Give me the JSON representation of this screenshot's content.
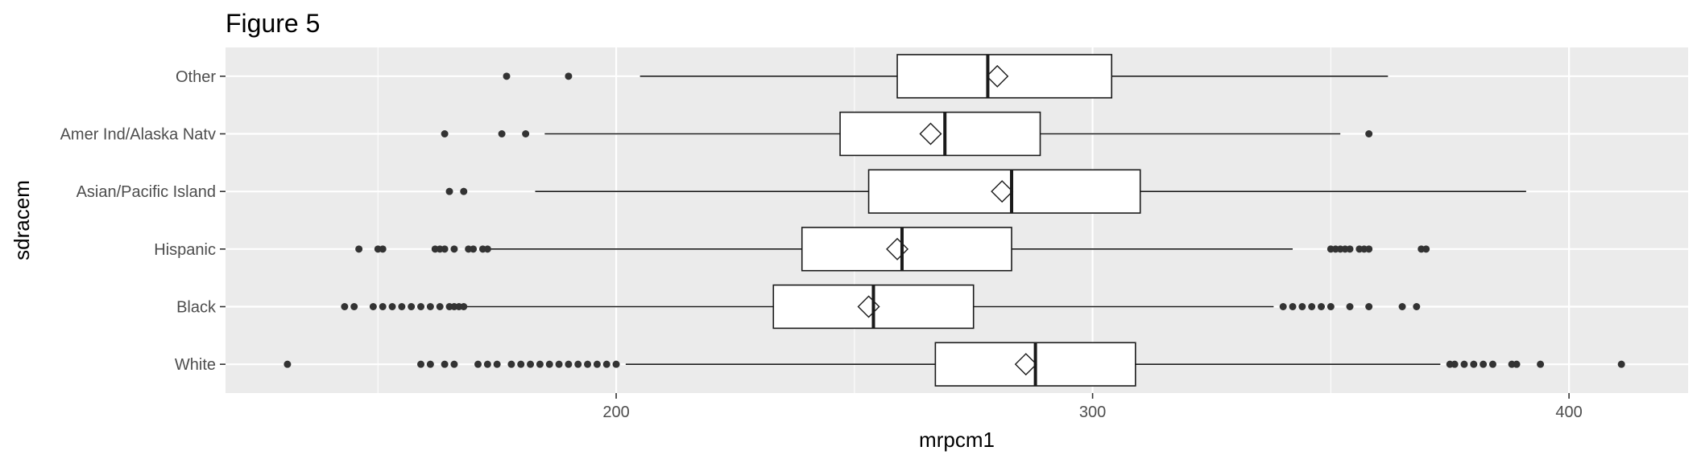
{
  "chart_data": {
    "type": "boxplot",
    "title": "Figure 5",
    "xlabel": "mrpcm1",
    "ylabel": "sdracem",
    "xlim": [
      118,
      425
    ],
    "x_ticks": [
      200,
      300,
      400
    ],
    "x_minor_ticks": [
      150,
      250,
      350
    ],
    "grid": true,
    "categories": [
      "Other",
      "Amer Ind/Alaska Natv",
      "Asian/Pacific Island",
      "Hispanic",
      "Black",
      "White"
    ],
    "boxes": [
      {
        "name": "Other",
        "whisker_low": 205,
        "q1": 259,
        "median": 278,
        "q3": 304,
        "whisker_high": 362,
        "mean": 280,
        "outliers": [
          177,
          190
        ]
      },
      {
        "name": "Amer Ind/Alaska Natv",
        "whisker_low": 185,
        "q1": 247,
        "median": 269,
        "q3": 289,
        "whisker_high": 352,
        "mean": 266,
        "outliers": [
          164,
          176,
          181,
          358
        ]
      },
      {
        "name": "Asian/Pacific Island",
        "whisker_low": 183,
        "q1": 253,
        "median": 283,
        "q3": 310,
        "whisker_high": 391,
        "mean": 281,
        "outliers": [
          165,
          168
        ]
      },
      {
        "name": "Hispanic",
        "whisker_low": 173,
        "q1": 239,
        "median": 260,
        "q3": 283,
        "whisker_high": 342,
        "mean": 259,
        "outliers": [
          146,
          150,
          151,
          162,
          163,
          164,
          166,
          169,
          170,
          172,
          173,
          350,
          351,
          352,
          353,
          354,
          356,
          357,
          358,
          369,
          370
        ]
      },
      {
        "name": "Black",
        "whisker_low": 168,
        "q1": 233,
        "median": 254,
        "q3": 275,
        "whisker_high": 338,
        "mean": 253,
        "outliers": [
          143,
          145,
          149,
          151,
          153,
          155,
          157,
          159,
          161,
          163,
          165,
          166,
          167,
          168,
          340,
          342,
          344,
          346,
          348,
          350,
          354,
          358,
          365,
          368
        ]
      },
      {
        "name": "White",
        "whisker_low": 202,
        "q1": 267,
        "median": 288,
        "q3": 309,
        "whisker_high": 373,
        "mean": 286,
        "outliers": [
          131,
          159,
          161,
          164,
          166,
          171,
          173,
          175,
          178,
          180,
          182,
          184,
          186,
          188,
          190,
          192,
          194,
          196,
          198,
          200,
          375,
          376,
          378,
          380,
          382,
          384,
          388,
          389,
          394,
          411
        ]
      }
    ]
  }
}
